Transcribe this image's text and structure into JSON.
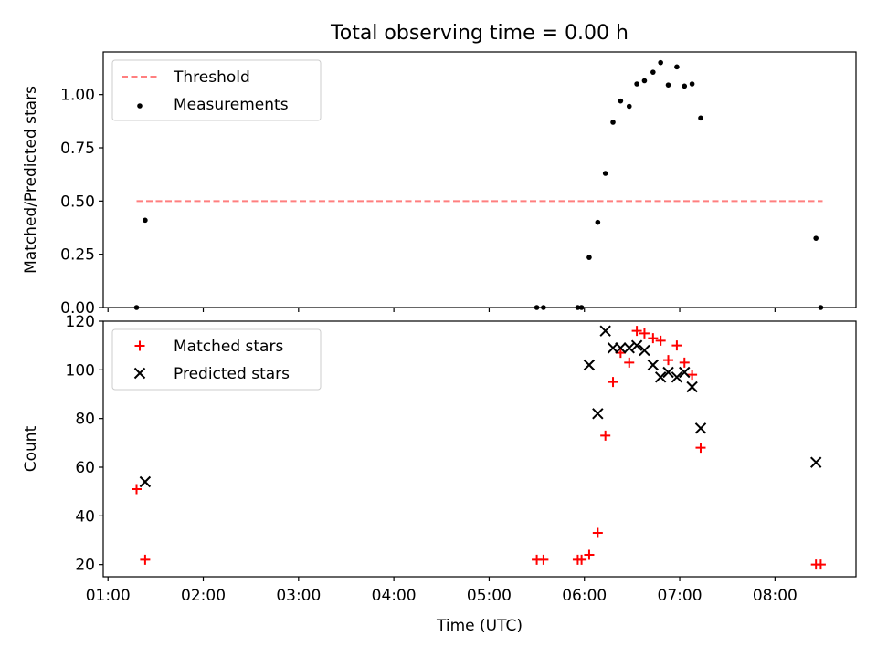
{
  "figure_title": "Total observing time = 0.00 h",
  "chart_data": [
    {
      "type": "scatter",
      "panel": "top",
      "title": "Total observing time = 0.00 h",
      "xlabel": "",
      "ylabel": "Matched/Predicted stars",
      "x_axis": {
        "unit": "hours (UTC)",
        "range": [
          0.95,
          8.85
        ]
      },
      "ylim": [
        0.0,
        1.2
      ],
      "yticks": [
        0.0,
        0.25,
        0.5,
        0.75,
        1.0
      ],
      "ytick_labels": [
        "0.00",
        "0.25",
        "0.50",
        "0.75",
        "1.00"
      ],
      "grid": false,
      "legend": {
        "placement": "top-left",
        "entries": [
          "Threshold",
          "Measurements"
        ]
      },
      "series": [
        {
          "name": "Threshold",
          "kind": "line",
          "style": "dashed",
          "color": "#ff7f7f",
          "points": [
            [
              1.3,
              0.5
            ],
            [
              8.5,
              0.5
            ]
          ]
        },
        {
          "name": "Measurements",
          "kind": "scatter",
          "marker": "dot",
          "color": "#000000",
          "points": [
            [
              1.3,
              0.0
            ],
            [
              1.39,
              0.41
            ],
            [
              5.5,
              0.0
            ],
            [
              5.57,
              0.0
            ],
            [
              5.93,
              0.0
            ],
            [
              5.97,
              0.0
            ],
            [
              6.05,
              0.235
            ],
            [
              6.14,
              0.4
            ],
            [
              6.22,
              0.63
            ],
            [
              6.3,
              0.87
            ],
            [
              6.38,
              0.97
            ],
            [
              6.47,
              0.945
            ],
            [
              6.55,
              1.05
            ],
            [
              6.63,
              1.065
            ],
            [
              6.72,
              1.105
            ],
            [
              6.8,
              1.15
            ],
            [
              6.88,
              1.045
            ],
            [
              6.97,
              1.13
            ],
            [
              7.05,
              1.04
            ],
            [
              7.13,
              1.05
            ],
            [
              7.22,
              0.89
            ],
            [
              8.43,
              0.325
            ],
            [
              8.48,
              0.0
            ]
          ]
        }
      ]
    },
    {
      "type": "scatter",
      "panel": "bottom",
      "xlabel": "Time (UTC)",
      "ylabel": "Count",
      "x_axis": {
        "unit": "hours (UTC)",
        "range": [
          0.95,
          8.85
        ]
      },
      "xticks": [
        1,
        2,
        3,
        4,
        5,
        6,
        7,
        8
      ],
      "xtick_labels": [
        "01:00",
        "02:00",
        "03:00",
        "04:00",
        "05:00",
        "06:00",
        "07:00",
        "08:00"
      ],
      "ylim": [
        15,
        120
      ],
      "yticks": [
        20,
        40,
        60,
        80,
        100,
        120
      ],
      "ytick_labels": [
        "20",
        "40",
        "60",
        "80",
        "100",
        "120"
      ],
      "grid": false,
      "legend": {
        "placement": "top-left",
        "entries": [
          "Matched stars",
          "Predicted stars"
        ]
      },
      "series": [
        {
          "name": "Matched stars",
          "marker": "plus",
          "color": "#ff0000",
          "points": [
            [
              1.3,
              51
            ],
            [
              1.39,
              22
            ],
            [
              5.5,
              22
            ],
            [
              5.57,
              22
            ],
            [
              5.93,
              22
            ],
            [
              5.97,
              22
            ],
            [
              6.05,
              24
            ],
            [
              6.14,
              33
            ],
            [
              6.22,
              73
            ],
            [
              6.3,
              95
            ],
            [
              6.38,
              107
            ],
            [
              6.47,
              103
            ],
            [
              6.55,
              116
            ],
            [
              6.63,
              115
            ],
            [
              6.72,
              113
            ],
            [
              6.8,
              112
            ],
            [
              6.88,
              104
            ],
            [
              6.97,
              110
            ],
            [
              7.05,
              103
            ],
            [
              7.13,
              98
            ],
            [
              7.22,
              68
            ],
            [
              8.43,
              20
            ],
            [
              8.48,
              20
            ]
          ]
        },
        {
          "name": "Predicted stars",
          "marker": "x",
          "color": "#000000",
          "points": [
            [
              1.39,
              54
            ],
            [
              6.05,
              102
            ],
            [
              6.14,
              82
            ],
            [
              6.22,
              116
            ],
            [
              6.3,
              109
            ],
            [
              6.38,
              109
            ],
            [
              6.47,
              109
            ],
            [
              6.55,
              110
            ],
            [
              6.63,
              108
            ],
            [
              6.72,
              102
            ],
            [
              6.8,
              97
            ],
            [
              6.88,
              99
            ],
            [
              6.97,
              97
            ],
            [
              7.05,
              99
            ],
            [
              7.13,
              93
            ],
            [
              7.22,
              76
            ],
            [
              8.43,
              62
            ]
          ]
        }
      ]
    }
  ]
}
